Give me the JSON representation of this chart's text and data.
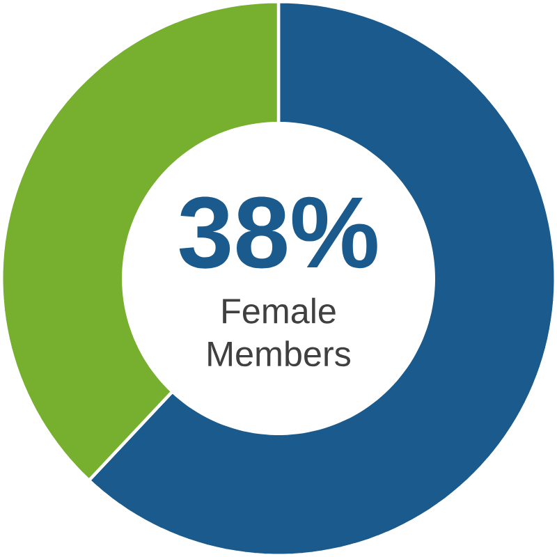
{
  "chart_data": {
    "type": "donut",
    "categories": [
      null,
      null
    ],
    "values": [
      62,
      38
    ],
    "colors": [
      "#1b5a8c",
      "#77b02f"
    ],
    "annotations": [
      "**38%**",
      "Female Members"
    ]
  }
}
